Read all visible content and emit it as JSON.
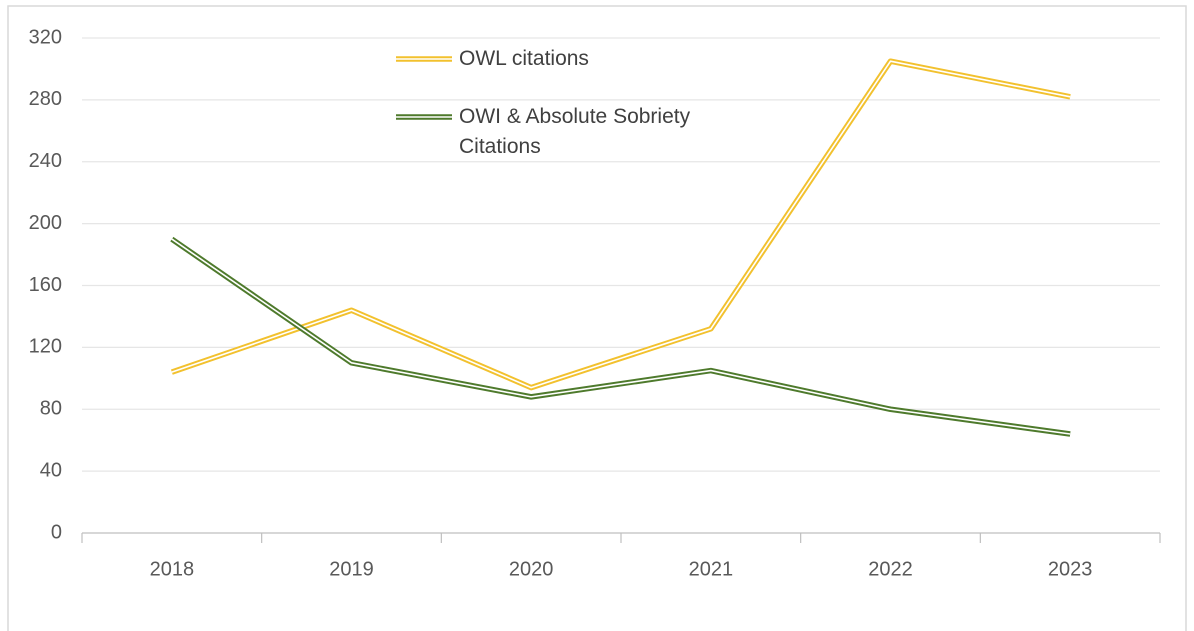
{
  "chart_data": {
    "type": "line",
    "categories": [
      "2018",
      "2019",
      "2020",
      "2021",
      "2022",
      "2023"
    ],
    "series": [
      {
        "name": "OWL citations",
        "color": "#f2c12e",
        "values": [
          104,
          144,
          94,
          132,
          305,
          282
        ]
      },
      {
        "name": "OWI & Absolute Sobriety Citations",
        "color": "#4e7a2c",
        "values": [
          190,
          110,
          88,
          105,
          80,
          64
        ]
      }
    ],
    "ylim": [
      0,
      320
    ],
    "yticks": [
      0,
      40,
      80,
      120,
      160,
      200,
      240,
      280,
      320
    ],
    "grid": true
  }
}
